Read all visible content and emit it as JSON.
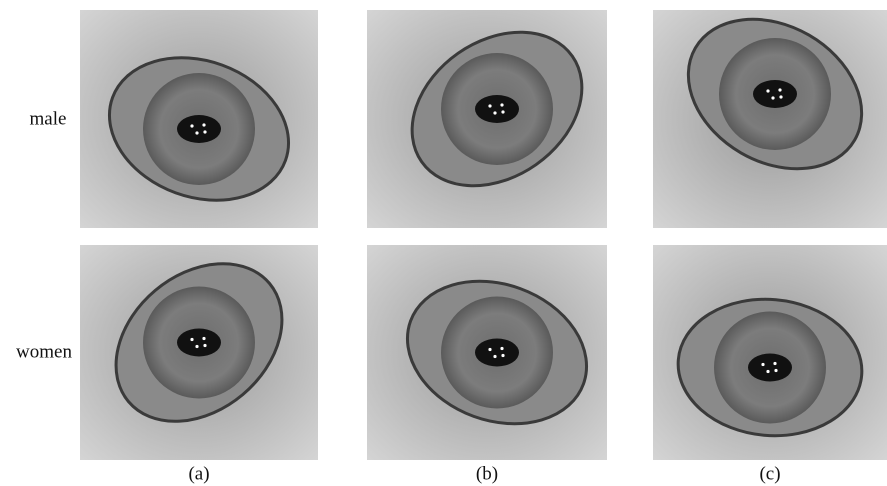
{
  "rows": [
    "male",
    "women"
  ],
  "columns": [
    "(a)",
    "(b)",
    "(c)"
  ]
}
